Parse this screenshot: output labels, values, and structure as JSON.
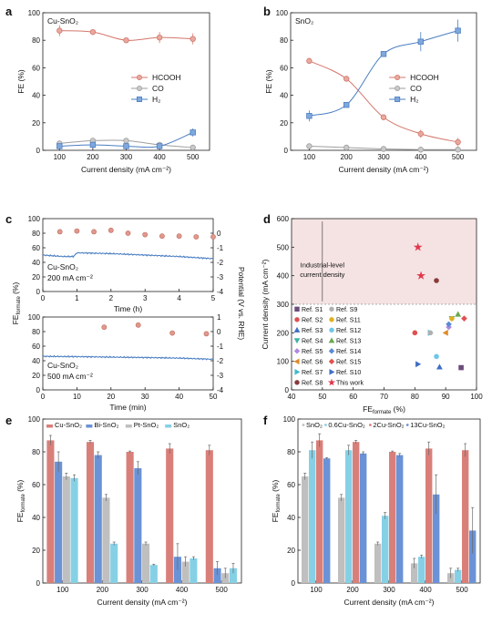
{
  "colors": {
    "red": "#d4766b",
    "red_fill": "#e8a99f",
    "gray": "#9e9e9e",
    "gray_fill": "#c9c9c9",
    "blue": "#4a7ec2",
    "blue_fill": "#80a8dd",
    "lightblue": "#86d0e6",
    "bar_red": "#d97f7a",
    "bar_blue": "#6a92d6",
    "bar_gray": "#bfbfbf",
    "region": "#f5e3e3",
    "trace": "#4a7ec2",
    "dot": "#e0988d"
  },
  "chart_data": [
    {
      "panel": "a",
      "type": "line",
      "inset_label": "Cu-SnO₂",
      "xlabel": "Current density (mA cm⁻²)",
      "ylabel": "FE (%)",
      "x": [
        100,
        200,
        300,
        400,
        500
      ],
      "xlim": [
        50,
        550
      ],
      "ylim": [
        0,
        100
      ],
      "xticks": [
        100,
        200,
        300,
        400,
        500
      ],
      "yticks": [
        0,
        20,
        40,
        60,
        80,
        100
      ],
      "series": [
        {
          "name": "HCOOH",
          "marker": "circle",
          "color": "red",
          "values": [
            87,
            86,
            80,
            82,
            81
          ],
          "err": [
            4,
            1.5,
            1,
            4,
            4
          ]
        },
        {
          "name": "CO",
          "marker": "circle",
          "color": "gray",
          "values": [
            5,
            7,
            7,
            4,
            2
          ],
          "err": [
            1,
            1,
            1,
            1,
            1
          ]
        },
        {
          "name": "H₂",
          "marker": "square",
          "color": "blue",
          "values": [
            3,
            4,
            3,
            3,
            13
          ],
          "err": [
            1,
            1,
            1,
            1,
            3
          ]
        }
      ],
      "legend": "center-right"
    },
    {
      "panel": "b",
      "type": "line",
      "inset_label": "SnO₂",
      "xlabel": "Current density (mA cm⁻²)",
      "ylabel": "FE (%)",
      "x": [
        100,
        200,
        300,
        400,
        500
      ],
      "xlim": [
        50,
        550
      ],
      "ylim": [
        0,
        100
      ],
      "xticks": [
        100,
        200,
        300,
        400,
        500
      ],
      "yticks": [
        0,
        20,
        40,
        60,
        80,
        100
      ],
      "series": [
        {
          "name": "HCOOH",
          "marker": "circle",
          "color": "red",
          "values": [
            65,
            52,
            24,
            12,
            6
          ],
          "err": [
            2,
            2,
            1,
            3,
            3
          ]
        },
        {
          "name": "CO",
          "marker": "circle",
          "color": "gray",
          "values": [
            3,
            2,
            1,
            0.5,
            0.5
          ],
          "err": [
            0.5,
            0.5,
            0.5,
            0.5,
            0.5
          ]
        },
        {
          "name": "H₂",
          "marker": "square",
          "color": "blue",
          "values": [
            25,
            33,
            70,
            79,
            87
          ],
          "err": [
            4,
            1,
            2,
            7,
            8
          ]
        }
      ],
      "legend": "center-right"
    },
    {
      "panel": "c-top",
      "type": "scatter",
      "inset_label": [
        "Cu-SnO₂",
        "200 mA cm⁻²"
      ],
      "xlabel": "Time (h)",
      "ylabel_left": "FE_formate (%)",
      "ylabel_right": "Potential (V vs. RHE)",
      "xlim": [
        0,
        5
      ],
      "ylim": [
        0,
        100
      ],
      "xticks": [
        0,
        1,
        2,
        3,
        4,
        5
      ],
      "yticks": [
        0,
        20,
        40,
        60,
        80,
        100
      ],
      "y2lim": [
        -4,
        1
      ],
      "y2ticks": [
        0,
        -1,
        -2,
        -3,
        -4
      ],
      "fe_points": {
        "x": [
          0.5,
          1,
          1.5,
          2,
          2.5,
          3,
          3.5,
          4,
          4.5,
          5
        ],
        "y": [
          82,
          83,
          82,
          84,
          80,
          78,
          76,
          76,
          75,
          75
        ]
      },
      "potential_trace": {
        "x": [
          0,
          0.6,
          0.9,
          1.0,
          1.1,
          2,
          3,
          4,
          5
        ],
        "y": [
          -1.5,
          -1.6,
          -1.6,
          -1.35,
          -1.35,
          -1.4,
          -1.5,
          -1.6,
          -1.75
        ]
      }
    },
    {
      "panel": "c-bottom",
      "type": "scatter",
      "inset_label": [
        "Cu-SnO₂",
        "500 mA cm⁻²"
      ],
      "xlabel": "Time (min)",
      "ylabel_left": "FE_formate (%)",
      "ylabel_right": "Potential (V vs. RHE)",
      "xlim": [
        0,
        50
      ],
      "ylim": [
        0,
        100
      ],
      "xticks": [
        0,
        10,
        20,
        30,
        40,
        50
      ],
      "yticks": [
        0,
        20,
        40,
        60,
        80,
        100
      ],
      "y2lim": [
        -4,
        1
      ],
      "y2ticks": [
        1,
        0,
        -1,
        -2,
        -3,
        -4
      ],
      "fe_points": {
        "x": [
          18,
          28,
          38,
          48
        ],
        "y": [
          86,
          89,
          78,
          77
        ]
      },
      "potential_trace": {
        "x": [
          0,
          10,
          20,
          30,
          40,
          50
        ],
        "y": [
          -1.7,
          -1.72,
          -1.75,
          -1.78,
          -1.82,
          -1.9
        ]
      }
    },
    {
      "panel": "d",
      "type": "scatter",
      "xlabel": "FE_formate (%)",
      "ylabel": "Current density (mA cm⁻²)",
      "xlim": [
        40,
        100
      ],
      "ylim": [
        0,
        600
      ],
      "xticks": [
        40,
        50,
        60,
        70,
        80,
        90,
        100
      ],
      "yticks": [
        0,
        100,
        200,
        300,
        400,
        500,
        600
      ],
      "region": {
        "ymin": 300,
        "label": [
          "Industrial-level",
          "current density"
        ]
      },
      "points": [
        {
          "name": "Ref. S1",
          "x": 95,
          "y": 78,
          "color": "#6b4c7a",
          "marker": "square"
        },
        {
          "name": "Ref. S2",
          "x": 80,
          "y": 200,
          "color": "#e05050",
          "marker": "circle"
        },
        {
          "name": "Ref. S3",
          "x": 88,
          "y": 80,
          "color": "#3f6ec4",
          "marker": "triangle-up"
        },
        {
          "name": "Ref. S4",
          "x": 92,
          "y": 250,
          "color": "#3fb3a8",
          "marker": "triangle-down"
        },
        {
          "name": "Ref. S5",
          "x": 91,
          "y": 220,
          "color": "#b08adf",
          "marker": "diamond"
        },
        {
          "name": "Ref. S6",
          "x": 90,
          "y": 200,
          "color": "#e08a2a",
          "marker": "triangle-left"
        },
        {
          "name": "Ref. S7",
          "x": 85,
          "y": 200,
          "color": "#3fb9d0",
          "marker": "triangle-right"
        },
        {
          "name": "Ref. S8",
          "x": 87,
          "y": 383,
          "color": "#8a3a3a",
          "marker": "circle"
        },
        {
          "name": "Ref. S9",
          "x": 85,
          "y": 200,
          "color": "#b0b0b0",
          "marker": "circle"
        },
        {
          "name": "Ref. S11",
          "x": 92,
          "y": 250,
          "color": "#e0b020",
          "marker": "circle"
        },
        {
          "name": "Ref. S12",
          "x": 87,
          "y": 117,
          "color": "#6fc6e8",
          "marker": "circle"
        },
        {
          "name": "Ref. S13",
          "x": 94,
          "y": 265,
          "color": "#6aa84f",
          "marker": "triangle-up"
        },
        {
          "name": "Ref. S14",
          "x": 91,
          "y": 230,
          "color": "#5a8ad6",
          "marker": "diamond"
        },
        {
          "name": "Ref. S15",
          "x": 96,
          "y": 250,
          "color": "#e05050",
          "marker": "diamond"
        },
        {
          "name": "Ref. S10",
          "x": 81,
          "y": 90,
          "color": "#3f6ec4",
          "marker": "triangle-right"
        },
        {
          "name": "This work",
          "x": 81,
          "y": 500,
          "color": "#e0384b",
          "marker": "star"
        },
        {
          "name": "This work",
          "x": 82,
          "y": 400,
          "color": "#e0384b",
          "marker": "star"
        }
      ],
      "legend_cols": [
        [
          "Ref. S1",
          "Ref. S2",
          "Ref. S3",
          "Ref. S4",
          "Ref. S5",
          "Ref. S6",
          "Ref. S7",
          "Ref. S8"
        ],
        [
          "Ref. S9",
          "Ref. S11",
          "Ref. S12",
          "Ref. S13",
          "Ref. S14",
          "Ref. S15",
          "Ref. S10",
          "This work"
        ]
      ]
    },
    {
      "panel": "e",
      "type": "bar",
      "xlabel": "Current density (mA cm⁻²)",
      "ylabel": "FE_formate (%)",
      "categories": [
        "100",
        "200",
        "300",
        "400",
        "500"
      ],
      "ylim": [
        0,
        100
      ],
      "yticks": [
        0,
        20,
        40,
        60,
        80,
        100
      ],
      "series": [
        {
          "name": "Cu-SnO₂",
          "color": "bar_red",
          "values": [
            87,
            86,
            80,
            82,
            81
          ],
          "err": [
            3,
            1,
            0.5,
            3,
            3
          ]
        },
        {
          "name": "Bi-SnO₂",
          "color": "bar_blue",
          "values": [
            74,
            78,
            70,
            16,
            9
          ],
          "err": [
            6,
            2,
            4,
            8,
            4
          ]
        },
        {
          "name": "Pt-SnO₂",
          "color": "bar_gray",
          "values": [
            65,
            52,
            24,
            13,
            6
          ],
          "err": [
            2,
            2,
            1,
            3,
            3
          ]
        },
        {
          "name": "SnO₂",
          "color": "lightblue",
          "values": [
            64,
            24,
            11,
            15,
            9
          ],
          "err": [
            2,
            1,
            0.5,
            1,
            3
          ]
        }
      ]
    },
    {
      "panel": "f",
      "type": "bar",
      "xlabel": "Current density (mA cm⁻²)",
      "ylabel": "FE_formate (%)",
      "categories": [
        "100",
        "200",
        "300",
        "400",
        "500"
      ],
      "ylim": [
        0,
        100
      ],
      "yticks": [
        0,
        20,
        40,
        60,
        80,
        100
      ],
      "series": [
        {
          "name": "SnO₂",
          "color": "bar_gray",
          "values": [
            65,
            52,
            24,
            12,
            6
          ],
          "err": [
            2,
            2,
            1,
            3,
            3
          ]
        },
        {
          "name": "0.6Cu-SnO₂",
          "color": "lightblue",
          "values": [
            81,
            81,
            41,
            16,
            8
          ],
          "err": [
            5,
            3,
            2,
            1,
            1
          ]
        },
        {
          "name": "2Cu-SnO₂",
          "color": "bar_red",
          "values": [
            87,
            86,
            80,
            82,
            81
          ],
          "err": [
            4,
            1,
            0.5,
            4,
            4
          ]
        },
        {
          "name": "13Cu-SnO₂",
          "color": "bar_blue",
          "values": [
            76,
            79,
            78,
            54,
            32
          ],
          "err": [
            0.5,
            1,
            1,
            12,
            14
          ]
        }
      ]
    }
  ],
  "panel_letters": [
    "a",
    "b",
    "c",
    "d",
    "e",
    "f"
  ]
}
